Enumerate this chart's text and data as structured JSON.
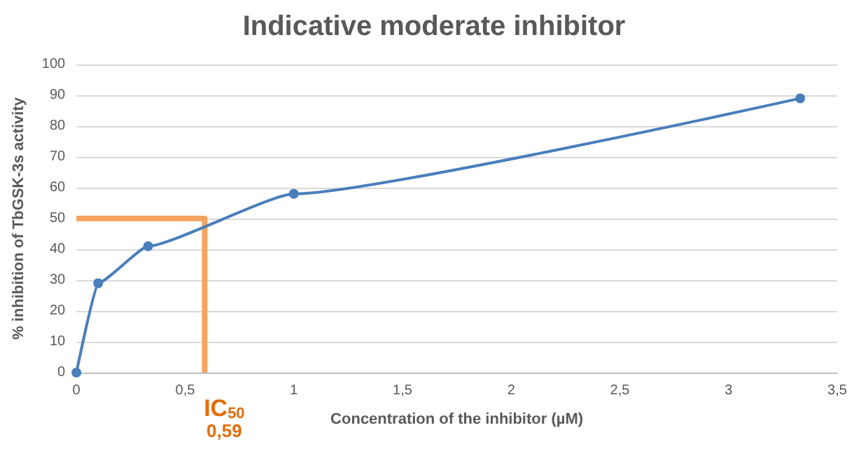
{
  "chart_data": {
    "type": "line",
    "title": "Indicative moderate inhibitor",
    "xlabel": "Concentration of the inhibitor (µM)",
    "ylabel": "% inhibition of TbGSK-3s activity",
    "series": [
      {
        "color": "#4a7ebb",
        "x": [
          0,
          0.1,
          0.33,
          1,
          3.33
        ],
        "values": [
          0,
          29,
          41,
          58,
          89
        ],
        "marker": "circle"
      },
      {
        "type": "line",
        "color": "#f4a460",
        "x": [
          0,
          0.59,
          0.59
        ],
        "values": [
          50,
          50,
          0
        ],
        "marker": "none"
      }
    ],
    "annotations": [
      {
        "text": "IC$_{50}$",
        "x": 0.59,
        "y": 0
      },
      {
        "text": "0,59",
        "x": 0.59,
        "y": 0
      }
    ],
    "xlim": [
      0,
      3.5
    ],
    "xticks": [
      0,
      {
        "value": 0.5,
        "label": "0,5"
      },
      1,
      {
        "value": 1.5,
        "label": "1,5"
      },
      2,
      {
        "value": 2.5,
        "label": "2,5"
      },
      3,
      {
        "value": 3.5,
        "label": "3,5"
      }
    ],
    "ylim": [
      0,
      100
    ],
    "yticks": [
      0,
      10,
      20,
      30,
      40,
      50,
      60,
      70,
      80,
      90,
      100
    ],
    "grid": "y"
  }
}
